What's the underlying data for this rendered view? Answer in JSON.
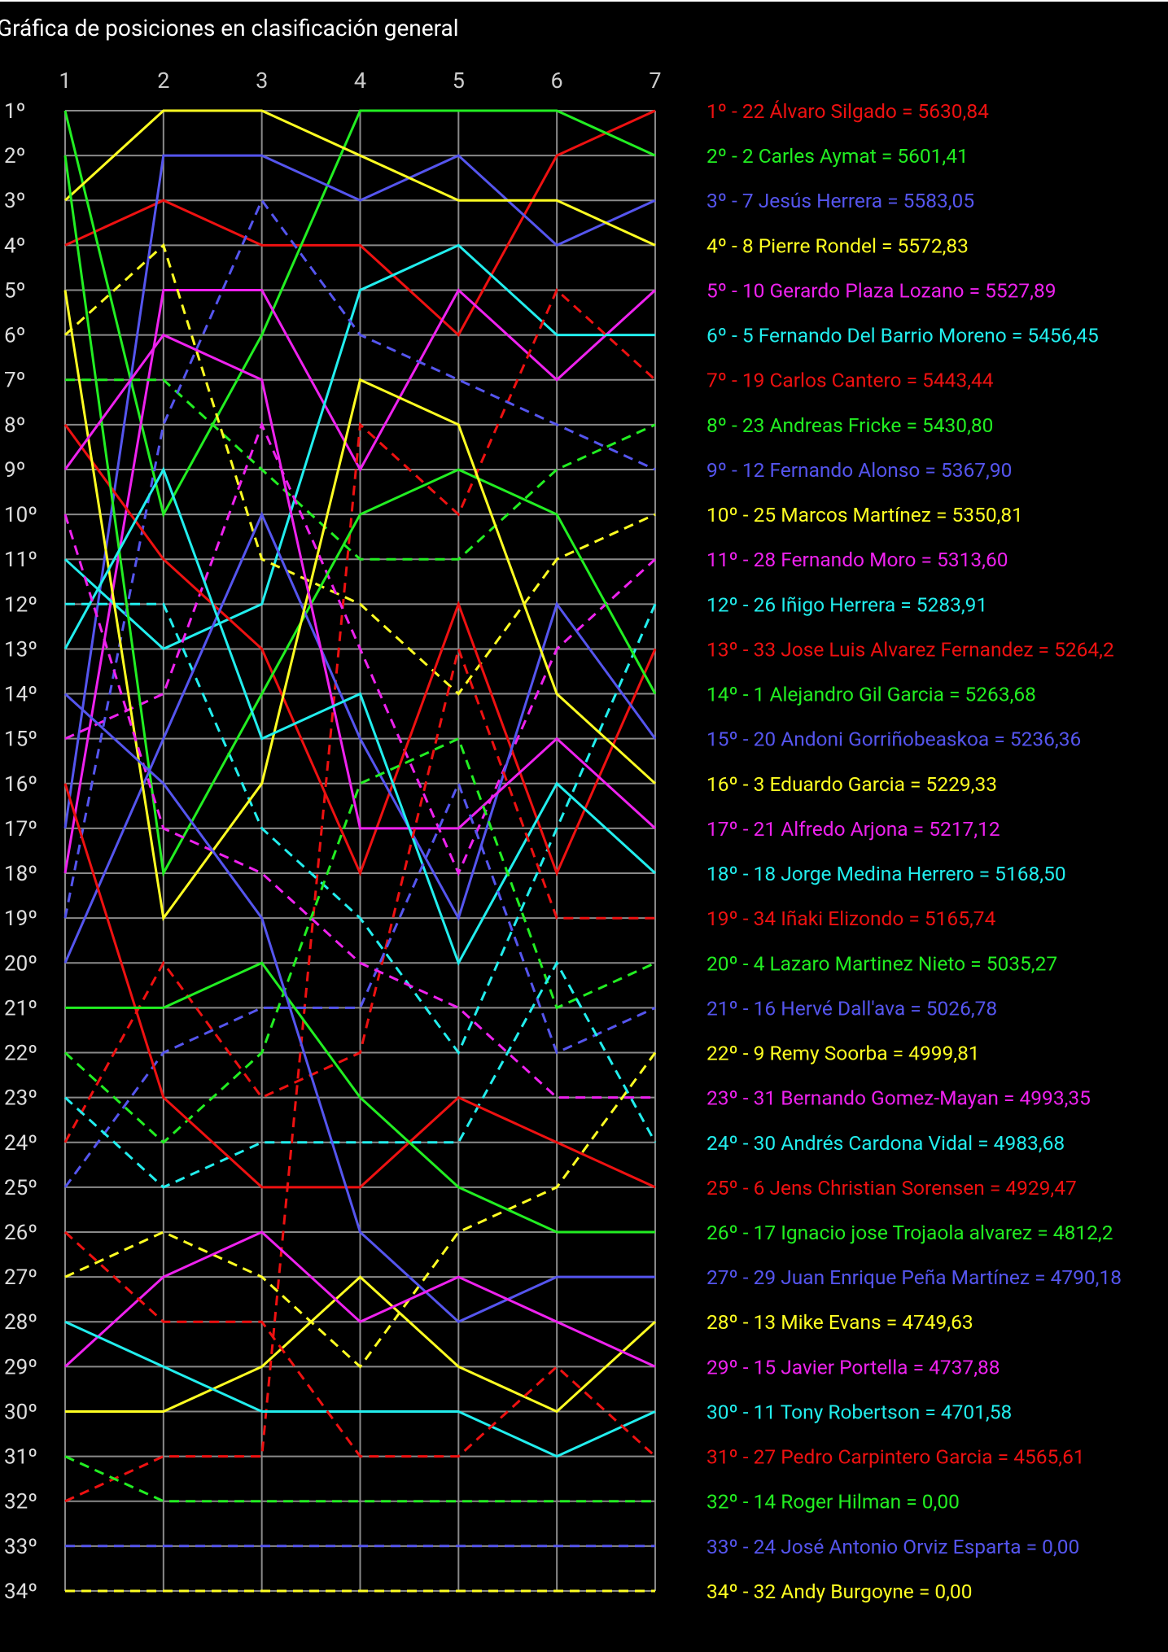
{
  "chart_data": {
    "type": "line",
    "title": "Gráfica de posiciones en clasificación general",
    "x": [
      1,
      2,
      3,
      4,
      5,
      6,
      7
    ],
    "x_tick_labels": [
      "1",
      "2",
      "3",
      "4",
      "5",
      "6",
      "7"
    ],
    "y_tick_labels": [
      "1º",
      "2º",
      "3º",
      "4º",
      "5º",
      "6º",
      "7º",
      "8º",
      "9º",
      "10º",
      "11º",
      "12º",
      "13º",
      "14º",
      "15º",
      "16º",
      "17º",
      "18º",
      "19º",
      "20º",
      "21º",
      "22º",
      "23º",
      "24º",
      "25º",
      "26º",
      "27º",
      "28º",
      "29º",
      "30º",
      "31º",
      "32º",
      "33º",
      "34º"
    ],
    "ylim": [
      1,
      34
    ],
    "y_inverted": true,
    "grid": true,
    "legend_placement": "right",
    "background": "#000000",
    "palette": [
      "#ee1111",
      "#22ee22",
      "#5555ee",
      "#ffff22",
      "#ee22ee",
      "#22eeee"
    ],
    "series": [
      {
        "name": "1º - 22 Álvaro Silgado = 5630,84",
        "positions": [
          4,
          3,
          4,
          4,
          6,
          2,
          1
        ],
        "dashed": false
      },
      {
        "name": "2º - 2 Carles Aymat = 5601,41",
        "positions": [
          1,
          10,
          6,
          1,
          1,
          1,
          2
        ],
        "dashed": false
      },
      {
        "name": "3º - 7 Jesús Herrera = 5583,05",
        "positions": [
          17,
          2,
          2,
          3,
          2,
          4,
          3
        ],
        "dashed": false
      },
      {
        "name": "4º - 8 Pierre Rondel = 5572,83",
        "positions": [
          3,
          1,
          1,
          2,
          3,
          3,
          4
        ],
        "dashed": false
      },
      {
        "name": "5º - 10 Gerardo Plaza Lozano = 5527,89",
        "positions": [
          18,
          5,
          5,
          9,
          5,
          7,
          5
        ],
        "dashed": false
      },
      {
        "name": "6º - 5 Fernando Del Barrio Moreno = 5456,45",
        "positions": [
          11,
          13,
          12,
          5,
          4,
          6,
          6
        ],
        "dashed": false
      },
      {
        "name": "7º - 19 Carlos Cantero = 5443,44",
        "positions": [
          32,
          31,
          31,
          8,
          10,
          5,
          7
        ],
        "dashed": true
      },
      {
        "name": "8º - 23 Andreas Fricke = 5430,80",
        "positions": [
          7,
          7,
          9,
          11,
          11,
          9,
          8
        ],
        "dashed": true
      },
      {
        "name": "9º - 12 Fernando Alonso = 5367,90",
        "positions": [
          19,
          8,
          3,
          6,
          7,
          8,
          9
        ],
        "dashed": true
      },
      {
        "name": "10º - 25 Marcos Martínez = 5350,81",
        "positions": [
          6,
          4,
          11,
          12,
          14,
          11,
          10
        ],
        "dashed": true
      },
      {
        "name": "11º - 28 Fernando Moro = 5313,60",
        "positions": [
          15,
          14,
          8,
          13,
          18,
          13,
          11
        ],
        "dashed": true
      },
      {
        "name": "12º - 26 Iñigo Herrera = 5283,91",
        "positions": [
          12,
          12,
          17,
          19,
          22,
          17,
          12
        ],
        "dashed": true
      },
      {
        "name": "13º - 33 Jose Luis Alvarez Fernandez = 5264,2",
        "positions": [
          8,
          11,
          13,
          18,
          12,
          18,
          13
        ],
        "dashed": false
      },
      {
        "name": "14º - 1 Alejandro Gil Garcia = 5263,68",
        "positions": [
          2,
          18,
          14,
          10,
          9,
          10,
          14
        ],
        "dashed": false
      },
      {
        "name": "15º - 20 Andoni Gorriñobeaskoa = 5236,36",
        "positions": [
          20,
          15,
          10,
          15,
          19,
          12,
          15
        ],
        "dashed": false
      },
      {
        "name": "16º - 3 Eduardo Garcia = 5229,33",
        "positions": [
          5,
          19,
          16,
          7,
          8,
          14,
          16
        ],
        "dashed": false
      },
      {
        "name": "17º - 21 Alfredo Arjona = 5217,12",
        "positions": [
          9,
          6,
          7,
          17,
          17,
          15,
          17
        ],
        "dashed": false
      },
      {
        "name": "18º - 18 Jorge Medina Herrero = 5168,50",
        "positions": [
          13,
          9,
          15,
          14,
          20,
          16,
          18
        ],
        "dashed": false
      },
      {
        "name": "19º - 34 Iñaki Elizondo = 5165,74",
        "positions": [
          24,
          20,
          23,
          22,
          13,
          19,
          19
        ],
        "dashed": true
      },
      {
        "name": "20º - 4 Lazaro Martinez Nieto = 5035,27",
        "positions": [
          22,
          24,
          22,
          16,
          15,
          21,
          20
        ],
        "dashed": true
      },
      {
        "name": "21º - 16 Hervé Dall'ava = 5026,78",
        "positions": [
          25,
          22,
          21,
          21,
          16,
          22,
          21
        ],
        "dashed": true
      },
      {
        "name": "22º - 9 Remy Soorba = 4999,81",
        "positions": [
          27,
          26,
          27,
          29,
          26,
          25,
          22
        ],
        "dashed": true
      },
      {
        "name": "23º - 31 Bernando Gomez-Mayan = 4993,35",
        "positions": [
          10,
          17,
          18,
          20,
          21,
          23,
          23
        ],
        "dashed": true
      },
      {
        "name": "24º - 30 Andrés Cardona Vidal = 4983,68",
        "positions": [
          23,
          25,
          24,
          24,
          24,
          20,
          24
        ],
        "dashed": true
      },
      {
        "name": "25º - 6 Jens Christian Sorensen = 4929,47",
        "positions": [
          16,
          23,
          25,
          25,
          23,
          24,
          25
        ],
        "dashed": false
      },
      {
        "name": "26º - 17 Ignacio jose Trojaola alvarez = 4812,2",
        "positions": [
          21,
          21,
          20,
          23,
          25,
          26,
          26
        ],
        "dashed": false
      },
      {
        "name": "27º - 29 Juan Enrique Peña Martínez = 4790,18",
        "positions": [
          14,
          16,
          19,
          26,
          28,
          27,
          27
        ],
        "dashed": false
      },
      {
        "name": "28º - 13 Mike Evans = 4749,63",
        "positions": [
          30,
          30,
          29,
          27,
          29,
          30,
          28
        ],
        "dashed": false
      },
      {
        "name": "29º - 15 Javier Portella = 4737,88",
        "positions": [
          29,
          27,
          26,
          28,
          27,
          28,
          29
        ],
        "dashed": false
      },
      {
        "name": "30º - 11 Tony Robertson = 4701,58",
        "positions": [
          28,
          29,
          30,
          30,
          30,
          31,
          30
        ],
        "dashed": false
      },
      {
        "name": "31º - 27 Pedro Carpintero Garcia = 4565,61",
        "positions": [
          26,
          28,
          28,
          31,
          31,
          29,
          31
        ],
        "dashed": true
      },
      {
        "name": "32º - 14 Roger Hilman = 0,00",
        "positions": [
          31,
          32,
          32,
          32,
          32,
          32,
          32
        ],
        "dashed": true
      },
      {
        "name": "33º - 24 José Antonio Orviz Esparta = 0,00",
        "positions": [
          33,
          33,
          33,
          33,
          33,
          33,
          33
        ],
        "dashed": true
      },
      {
        "name": "34º - 32 Andy Burgoyne = 0,00",
        "positions": [
          34,
          34,
          34,
          34,
          34,
          34,
          34
        ],
        "dashed": true
      }
    ]
  }
}
